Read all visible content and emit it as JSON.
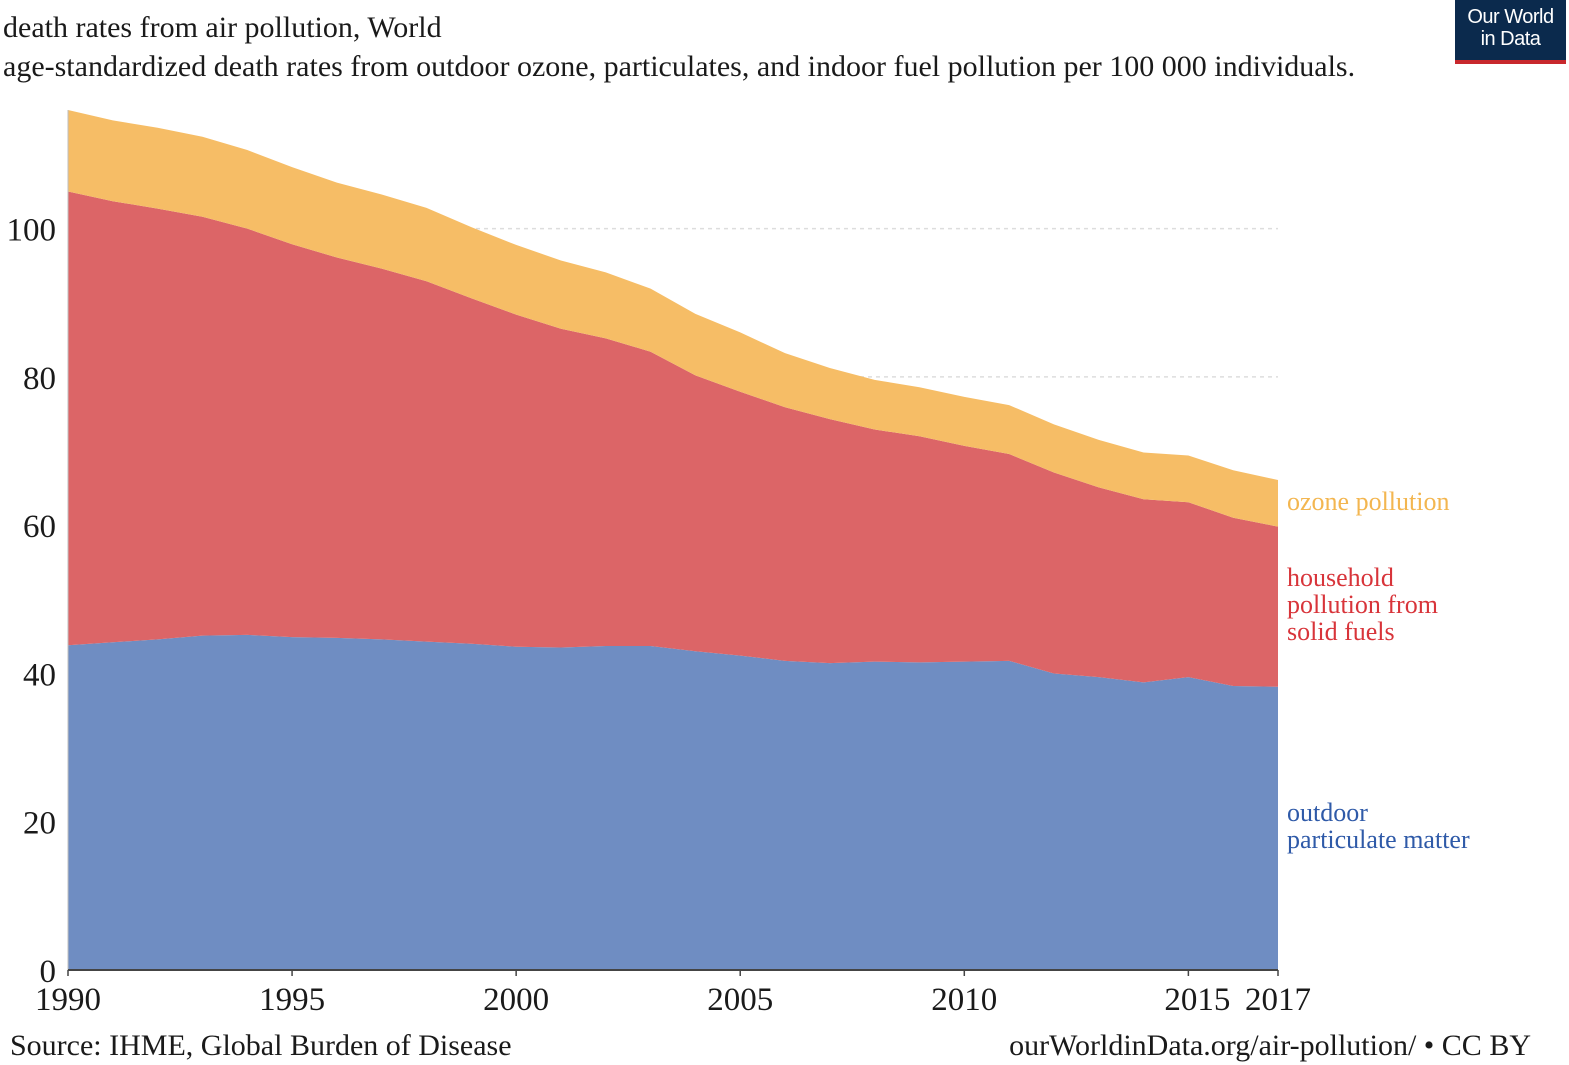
{
  "header": {
    "title": "death rates from air pollution, World",
    "subtitle": "age-standardized death rates from outdoor ozone, particulates, and indoor fuel pollution per 100 000 individuals.",
    "logo_line1": "Our World",
    "logo_line2": "in Data"
  },
  "footer": {
    "source": "Source: IHME, Global Burden of Disease",
    "credit": "ourWorldinData.org/air-pollution/ • CC BY"
  },
  "colors": {
    "outdoor_particulate_matter": "#6f8dc2",
    "household_pollution": "#dc6567",
    "ozone_pollution": "#f6bd66",
    "household_label": "#d8343a",
    "outdoor_label": "#2f5aa8",
    "ozone_label": "#f3b650",
    "grid": "#dddddd",
    "axis": "#444444"
  },
  "chart_data": {
    "type": "area",
    "stacked": true,
    "title": "death rates from air pollution, World",
    "subtitle": "age-standardized death rates from outdoor ozone, particulates, and indoor fuel pollution per 100 000 individuals.",
    "x": [
      1990,
      1991,
      1992,
      1993,
      1994,
      1995,
      1996,
      1997,
      1998,
      1999,
      2000,
      2001,
      2002,
      2003,
      2004,
      2005,
      2006,
      2007,
      2008,
      2009,
      2010,
      2011,
      2012,
      2013,
      2014,
      2015,
      2016,
      2017
    ],
    "x_ticks": [
      "1990",
      "1995",
      "2000",
      "2005",
      "2010",
      "2015",
      "2017"
    ],
    "y_ticks": [
      "0",
      "20",
      "40",
      "60",
      "80",
      "100"
    ],
    "ylim": [
      0,
      116
    ],
    "xlim": [
      1990,
      2017
    ],
    "grid": "horizontal dashed",
    "series": [
      {
        "name": "outdoor particulate matter",
        "label_lines": [
          "outdoor",
          "particulate matter"
        ],
        "values": [
          43.8,
          44.2,
          44.6,
          45.1,
          45.2,
          44.9,
          44.8,
          44.6,
          44.3,
          44.0,
          43.6,
          43.5,
          43.7,
          43.7,
          43.0,
          42.4,
          41.7,
          41.4,
          41.6,
          41.5,
          41.6,
          41.7,
          40.0,
          39.5,
          38.8,
          39.5,
          38.3,
          38.2
        ]
      },
      {
        "name": "household pollution from solid fuels",
        "label_lines": [
          "household",
          "pollution from",
          "solid fuels"
        ],
        "values": [
          61.2,
          59.5,
          58.1,
          56.5,
          54.8,
          53.0,
          51.3,
          50.0,
          48.6,
          46.6,
          44.8,
          43.0,
          41.5,
          39.7,
          37.2,
          35.6,
          34.2,
          32.9,
          31.3,
          30.5,
          29.1,
          27.9,
          27.1,
          25.6,
          24.7,
          23.6,
          22.7,
          21.6
        ]
      },
      {
        "name": "ozone pollution",
        "label_lines": [
          "ozone pollution"
        ],
        "values": [
          11.0,
          10.9,
          10.9,
          10.8,
          10.6,
          10.4,
          10.1,
          10.0,
          9.9,
          9.6,
          9.4,
          9.2,
          8.9,
          8.5,
          8.3,
          8.0,
          7.3,
          6.9,
          6.7,
          6.6,
          6.6,
          6.6,
          6.5,
          6.4,
          6.3,
          6.3,
          6.4,
          6.3
        ]
      }
    ]
  }
}
